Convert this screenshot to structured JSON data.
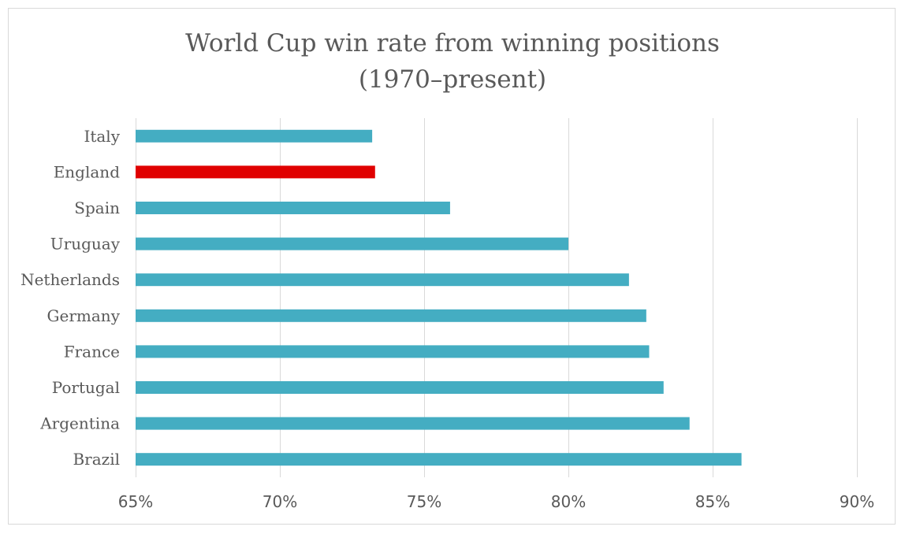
{
  "chart_data": {
    "type": "bar",
    "orientation": "horizontal",
    "title": "World Cup win rate from winning positions",
    "subtitle": "(1970–present)",
    "categories": [
      "Italy",
      "England",
      "Spain",
      "Uruguay",
      "Netherlands",
      "Germany",
      "France",
      "Portugal",
      "Argentina",
      "Brazil"
    ],
    "values": [
      73.2,
      73.3,
      75.9,
      80.0,
      82.1,
      82.7,
      82.8,
      83.3,
      84.2,
      86.0
    ],
    "highlight": "England",
    "xlabel": "",
    "ylabel": "",
    "xlim": [
      65,
      90
    ],
    "ticks": [
      65,
      70,
      75,
      80,
      85,
      90
    ],
    "tick_labels": [
      "65%",
      "70%",
      "75%",
      "80%",
      "85%",
      "90%"
    ],
    "grid": true,
    "legend": "none",
    "colors": {
      "bar": "#44adc2",
      "highlight": "#e00000",
      "grid": "#d9d9d9",
      "text": "#595959"
    }
  }
}
